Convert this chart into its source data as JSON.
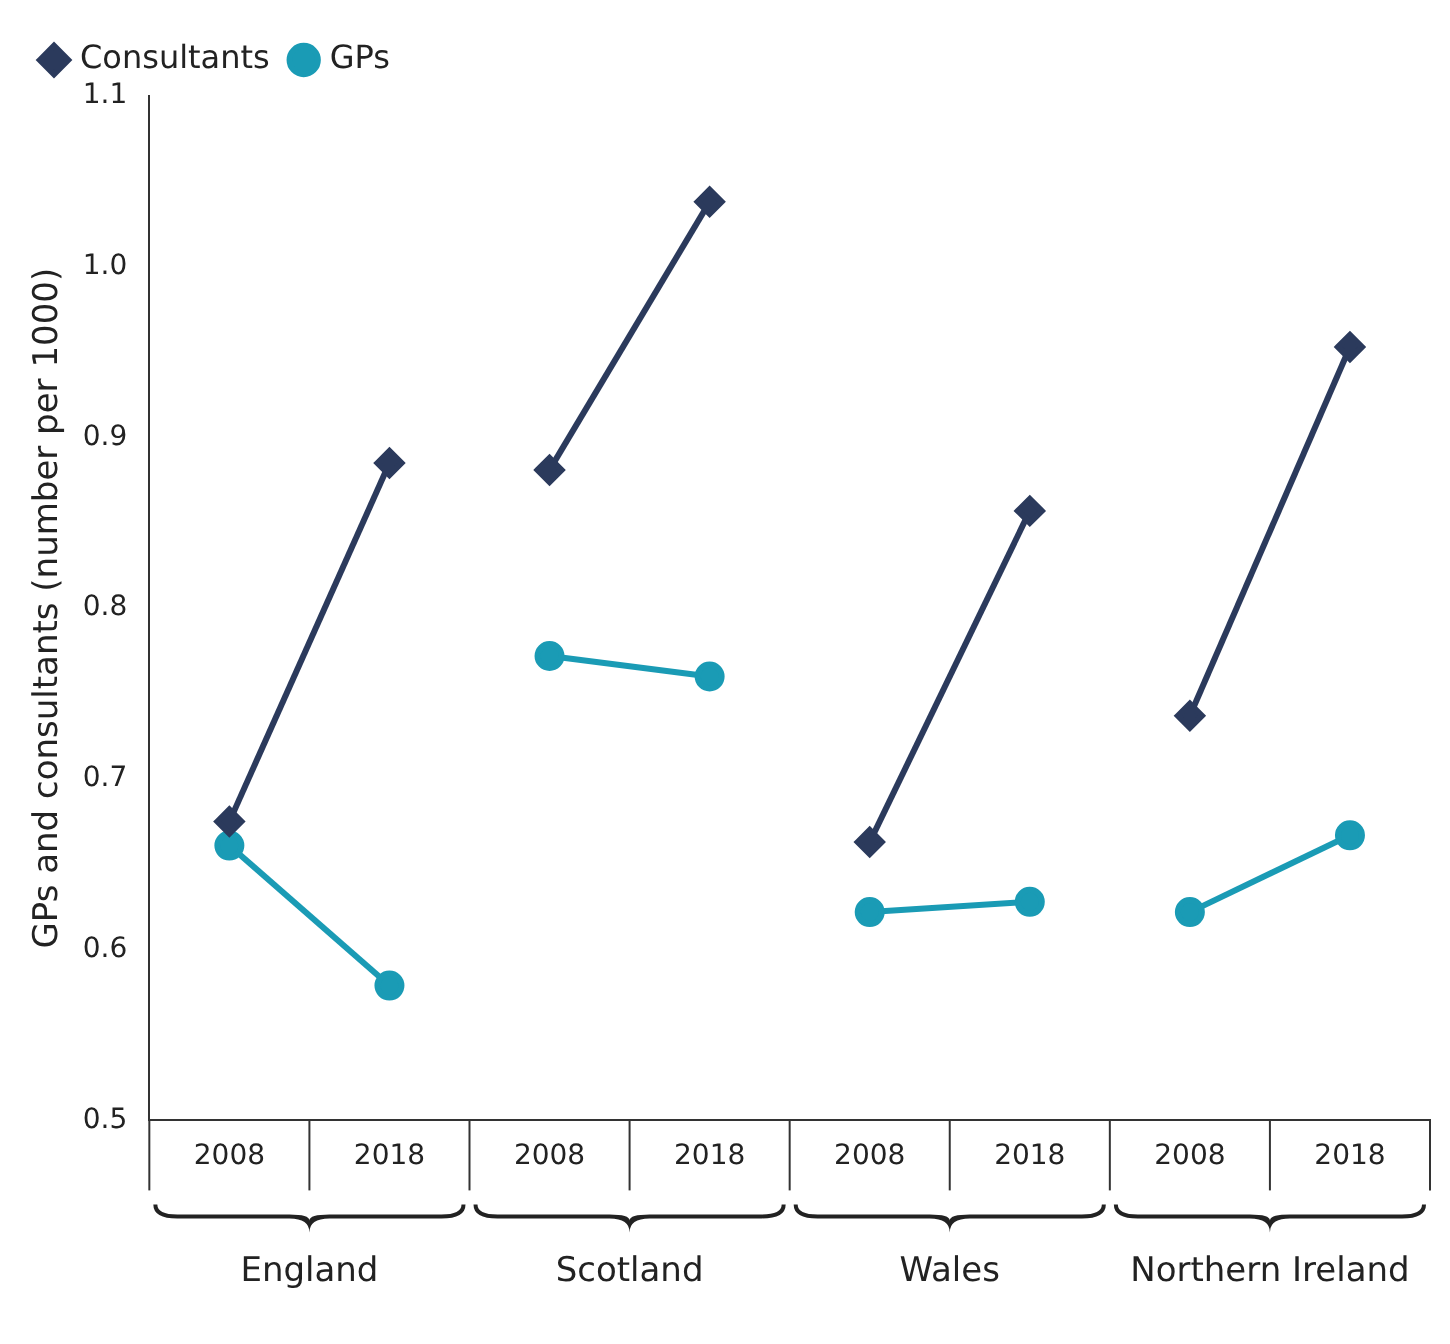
{
  "chart_data": {
    "type": "line",
    "ylabel": "GPs and consultants (number per 1000)",
    "categories": [
      "2008",
      "2018",
      "2008",
      "2018",
      "2008",
      "2018",
      "2008",
      "2018"
    ],
    "series": [
      {
        "name": "Consultants",
        "color": "#2b3a5c",
        "marker": "diamond",
        "values": [
          0.675,
          0.885,
          0.881,
          1.038,
          0.663,
          0.857,
          0.737,
          0.953
        ]
      },
      {
        "name": "GPs",
        "color": "#1a9bb5",
        "marker": "circle",
        "values": [
          0.661,
          0.579,
          0.772,
          0.76,
          0.622,
          0.628,
          0.622,
          0.667
        ]
      }
    ],
    "annotations": [
      "England",
      "Scotland",
      "Wales",
      "Northern Ireland"
    ],
    "ylim": [
      0.5,
      1.1
    ],
    "yticks": [
      {
        "value": 0.5,
        "label": "0.5"
      },
      {
        "value": 0.6,
        "label": "0.6"
      },
      {
        "value": 0.7,
        "label": "0.7"
      },
      {
        "value": 0.8,
        "label": "0.8"
      },
      {
        "value": 0.9,
        "label": "0.9"
      },
      {
        "value": 1,
        "label": "1.0"
      },
      {
        "value": 1.1,
        "label": "1.1"
      }
    ],
    "grid": false,
    "legend": "top left"
  }
}
